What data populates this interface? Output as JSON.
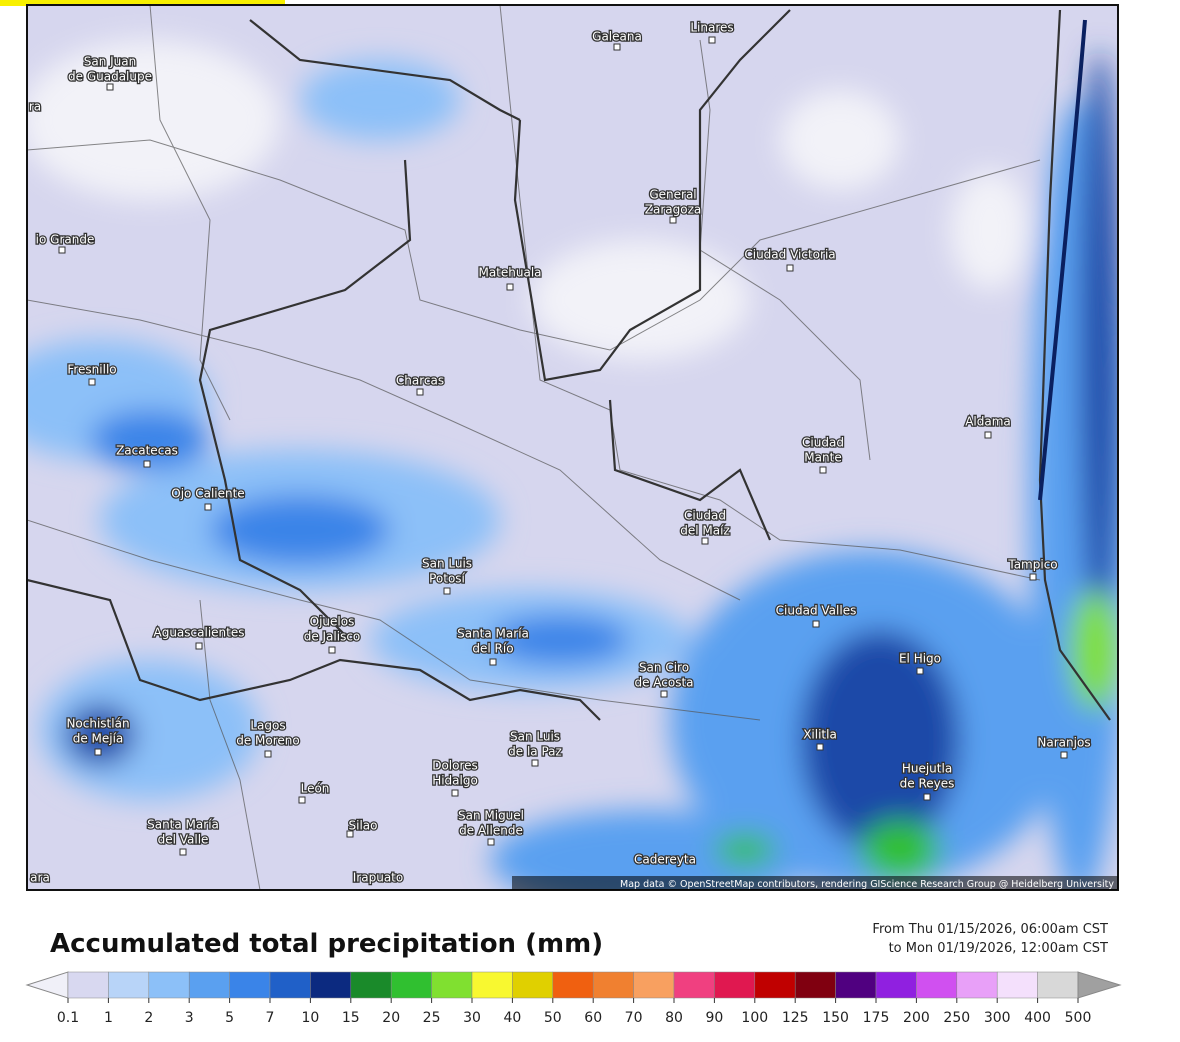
{
  "map": {
    "places": [
      {
        "lines": [
          "San Juan",
          "de Guadalupe"
        ]
      },
      {
        "lines": [
          "Galeana"
        ]
      },
      {
        "lines": [
          "Linares"
        ]
      },
      {
        "lines": [
          "io Grande"
        ]
      },
      {
        "lines": [
          "General",
          "Zaragoza"
        ]
      },
      {
        "lines": [
          "Ciudad Victoria"
        ]
      },
      {
        "lines": [
          "Matehuala"
        ]
      },
      {
        "lines": [
          "Fresnillo"
        ]
      },
      {
        "lines": [
          "Charcas"
        ]
      },
      {
        "lines": [
          "Aldama"
        ]
      },
      {
        "lines": [
          "Ciudad",
          "Mante"
        ]
      },
      {
        "lines": [
          "Zacatecas"
        ]
      },
      {
        "lines": [
          "Ojo Caliente"
        ]
      },
      {
        "lines": [
          "Ciudad",
          "del Maíz"
        ]
      },
      {
        "lines": [
          "San Luis",
          "Potosí"
        ]
      },
      {
        "lines": [
          "Tampico"
        ]
      },
      {
        "lines": [
          "Ciudad Valles"
        ]
      },
      {
        "lines": [
          "Aguascalientes"
        ]
      },
      {
        "lines": [
          "Ojuelos",
          "de Jalisco"
        ]
      },
      {
        "lines": [
          "Santa María",
          "del Río"
        ]
      },
      {
        "lines": [
          "El Higo"
        ]
      },
      {
        "lines": [
          "San Ciro",
          "de Acosta"
        ]
      },
      {
        "lines": [
          "Nochistlán",
          "de Mejía"
        ]
      },
      {
        "lines": [
          "Lagos",
          "de Moreno"
        ]
      },
      {
        "lines": [
          "Xilitla"
        ]
      },
      {
        "lines": [
          "Naranjos"
        ]
      },
      {
        "lines": [
          "San Luis",
          "de la Paz"
        ]
      },
      {
        "lines": [
          "Huejutla",
          "de Reyes"
        ]
      },
      {
        "lines": [
          "Dolores",
          "Hidalgo"
        ]
      },
      {
        "lines": [
          "León"
        ]
      },
      {
        "lines": [
          "San Miguel",
          "de Allende"
        ]
      },
      {
        "lines": [
          "Silao"
        ]
      },
      {
        "lines": [
          "Santa María",
          "del Valle"
        ]
      },
      {
        "lines": [
          "Cadereyta"
        ]
      },
      {
        "lines": [
          "Irapuato"
        ]
      },
      {
        "lines": [
          "ara"
        ]
      },
      {
        "lines": [
          "ra"
        ]
      }
    ],
    "attribution": "Map data © OpenStreetMap contributors, rendering GIScience Research Group @ Heidelberg University"
  },
  "legend": {
    "title": "Accumulated total precipitation (mm)",
    "period": [
      "From Thu 01/15/2026, 06:00am CST",
      "to Mon 01/19/2026, 12:00am CST"
    ],
    "ticks": [
      0.1,
      1,
      2,
      3,
      5,
      7,
      10,
      15,
      20,
      25,
      30,
      40,
      50,
      60,
      70,
      80,
      90,
      100,
      125,
      150,
      175,
      200,
      250,
      300,
      400,
      500
    ],
    "colors": [
      "#f0f0f8",
      "#d8d8f0",
      "#b8d4f8",
      "#8cc0f8",
      "#5aa0f0",
      "#3a84e8",
      "#2060c8",
      "#0c2a80",
      "#1a8a2a",
      "#30c030",
      "#80e030",
      "#f8f830",
      "#e0d000",
      "#f06010",
      "#f08030",
      "#f8a060",
      "#f04080",
      "#e01850",
      "#c00000",
      "#800010",
      "#500080",
      "#9020e0",
      "#d050f0",
      "#e8a0f8",
      "#f4e0fc",
      "#d8d8d8",
      "#a0a0a0"
    ]
  }
}
